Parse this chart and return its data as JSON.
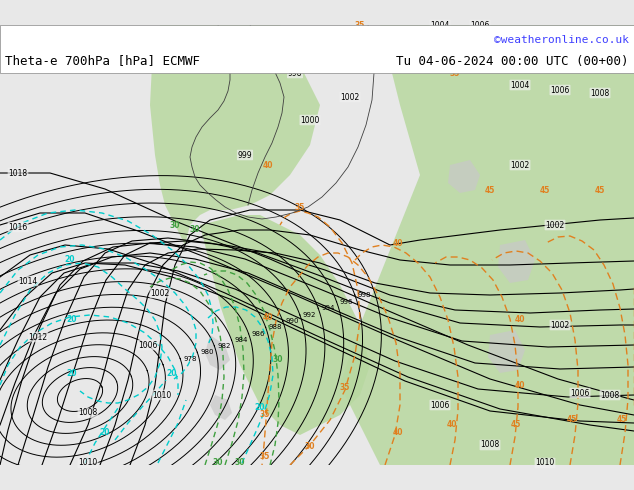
{
  "title_left": "Theta-e 700hPa [hPa] ECMWF",
  "title_right": "Tu 04-06-2024 00:00 UTC (00+00)",
  "copyright": "©weatheronline.co.uk",
  "bg_color": "#e8e8e8",
  "map_bg_light": "#f0f0f0",
  "green_fill": "#b8d8a0",
  "gray_fill": "#c8c8c8",
  "isobar_color": "#000000",
  "theta_orange_color": "#e08020",
  "theta_yellow_color": "#d4c020",
  "cyan_dashed_color": "#00cccc",
  "green_contour_color": "#40a040",
  "bottom_bar_color": "#ffffff",
  "title_fontsize": 9,
  "copyright_color": "#4040ff"
}
